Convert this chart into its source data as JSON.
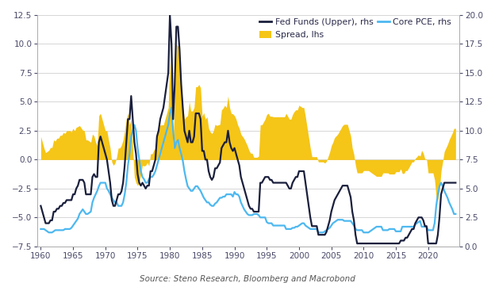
{
  "source_text": "Source: Steno Research, Bloomberg and Macrobond",
  "lhs_ylim": [
    -7.5,
    12.5
  ],
  "rhs_ylim": [
    0.0,
    20.0
  ],
  "xlim": [
    1959.5,
    2024.8
  ],
  "xticks": [
    1960,
    1965,
    1970,
    1975,
    1980,
    1985,
    1990,
    1995,
    2000,
    2005,
    2010,
    2015,
    2020
  ],
  "lhs_yticks": [
    -7.5,
    -5.0,
    -2.5,
    0.0,
    2.5,
    5.0,
    7.5,
    10.0,
    12.5
  ],
  "rhs_yticks": [
    0.0,
    2.5,
    5.0,
    7.5,
    10.0,
    12.5,
    15.0,
    17.5,
    20.0
  ],
  "bg_color": "#ffffff",
  "grid_color": "#d0d0d0",
  "fed_funds_color": "#1a1f3c",
  "core_pce_color": "#4db8f0",
  "spread_color": "#f5c518",
  "spread_alpha": 1.0,
  "legend_fed_funds": "Fed Funds (Upper), rhs",
  "legend_core_pce": "Core PCE, rhs",
  "legend_spread": "Spread, lhs",
  "t": [
    1960.0,
    1960.25,
    1960.5,
    1960.75,
    1961.0,
    1961.25,
    1961.5,
    1961.75,
    1962.0,
    1962.25,
    1962.5,
    1962.75,
    1963.0,
    1963.25,
    1963.5,
    1963.75,
    1964.0,
    1964.25,
    1964.5,
    1964.75,
    1965.0,
    1965.25,
    1965.5,
    1965.75,
    1966.0,
    1966.25,
    1966.5,
    1966.75,
    1967.0,
    1967.25,
    1967.5,
    1967.75,
    1968.0,
    1968.25,
    1968.5,
    1968.75,
    1969.0,
    1969.25,
    1969.5,
    1969.75,
    1970.0,
    1970.25,
    1970.5,
    1970.75,
    1971.0,
    1971.25,
    1971.5,
    1971.75,
    1972.0,
    1972.25,
    1972.5,
    1972.75,
    1973.0,
    1973.25,
    1973.5,
    1973.75,
    1974.0,
    1974.25,
    1974.5,
    1974.75,
    1975.0,
    1975.25,
    1975.5,
    1975.75,
    1976.0,
    1976.25,
    1976.5,
    1976.75,
    1977.0,
    1977.25,
    1977.5,
    1977.75,
    1978.0,
    1978.25,
    1978.5,
    1978.75,
    1979.0,
    1979.25,
    1979.5,
    1979.75,
    1980.0,
    1980.25,
    1980.5,
    1980.75,
    1981.0,
    1981.25,
    1981.5,
    1981.75,
    1982.0,
    1982.25,
    1982.5,
    1982.75,
    1983.0,
    1983.25,
    1983.5,
    1983.75,
    1984.0,
    1984.25,
    1984.5,
    1984.75,
    1985.0,
    1985.25,
    1985.5,
    1985.75,
    1986.0,
    1986.25,
    1986.5,
    1986.75,
    1987.0,
    1987.25,
    1987.5,
    1987.75,
    1988.0,
    1988.25,
    1988.5,
    1988.75,
    1989.0,
    1989.25,
    1989.5,
    1989.75,
    1990.0,
    1990.25,
    1990.5,
    1990.75,
    1991.0,
    1991.25,
    1991.5,
    1991.75,
    1992.0,
    1992.25,
    1992.5,
    1992.75,
    1993.0,
    1993.25,
    1993.5,
    1993.75,
    1994.0,
    1994.25,
    1994.5,
    1994.75,
    1995.0,
    1995.25,
    1995.5,
    1995.75,
    1996.0,
    1996.25,
    1996.5,
    1996.75,
    1997.0,
    1997.25,
    1997.5,
    1997.75,
    1998.0,
    1998.25,
    1998.5,
    1998.75,
    1999.0,
    1999.25,
    1999.5,
    1999.75,
    2000.0,
    2000.25,
    2000.5,
    2000.75,
    2001.0,
    2001.25,
    2001.5,
    2001.75,
    2002.0,
    2002.25,
    2002.5,
    2002.75,
    2003.0,
    2003.25,
    2003.5,
    2003.75,
    2004.0,
    2004.25,
    2004.5,
    2004.75,
    2005.0,
    2005.25,
    2005.5,
    2005.75,
    2006.0,
    2006.25,
    2006.5,
    2006.75,
    2007.0,
    2007.25,
    2007.5,
    2007.75,
    2008.0,
    2008.25,
    2008.5,
    2008.75,
    2009.0,
    2009.25,
    2009.5,
    2009.75,
    2010.0,
    2010.25,
    2010.5,
    2010.75,
    2011.0,
    2011.25,
    2011.5,
    2011.75,
    2012.0,
    2012.25,
    2012.5,
    2012.75,
    2013.0,
    2013.25,
    2013.5,
    2013.75,
    2014.0,
    2014.25,
    2014.5,
    2014.75,
    2015.0,
    2015.25,
    2015.5,
    2015.75,
    2016.0,
    2016.25,
    2016.5,
    2016.75,
    2017.0,
    2017.25,
    2017.5,
    2017.75,
    2018.0,
    2018.25,
    2018.5,
    2018.75,
    2019.0,
    2019.25,
    2019.5,
    2019.75,
    2020.0,
    2020.25,
    2020.5,
    2020.75,
    2021.0,
    2021.25,
    2021.5,
    2021.75,
    2022.0,
    2022.25,
    2022.5,
    2022.75,
    2023.0,
    2023.25,
    2023.5,
    2023.75,
    2024.0,
    2024.25
  ],
  "fed_funds_rhs": [
    3.5,
    3.0,
    2.5,
    2.0,
    2.0,
    2.0,
    2.25,
    2.25,
    3.0,
    3.0,
    3.25,
    3.25,
    3.5,
    3.5,
    3.75,
    3.75,
    4.0,
    4.0,
    4.0,
    4.0,
    4.5,
    4.5,
    5.0,
    5.25,
    5.75,
    5.75,
    5.75,
    5.5,
    4.5,
    4.5,
    4.5,
    4.5,
    6.0,
    6.25,
    6.0,
    6.0,
    9.0,
    9.5,
    9.0,
    8.5,
    8.0,
    7.5,
    6.5,
    5.5,
    4.0,
    3.5,
    3.5,
    4.0,
    4.5,
    4.5,
    4.75,
    5.5,
    7.0,
    9.0,
    11.0,
    11.0,
    13.0,
    11.0,
    9.0,
    8.0,
    6.25,
    5.5,
    5.25,
    5.5,
    5.25,
    5.0,
    5.25,
    5.25,
    6.5,
    6.5,
    7.0,
    7.5,
    9.5,
    10.0,
    11.0,
    11.5,
    12.0,
    13.0,
    14.0,
    15.0,
    20.0,
    17.5,
    11.0,
    14.0,
    19.0,
    19.0,
    17.0,
    14.0,
    12.0,
    10.0,
    9.5,
    9.0,
    10.0,
    9.0,
    9.0,
    9.5,
    11.5,
    11.5,
    11.5,
    11.0,
    8.25,
    8.25,
    7.5,
    7.5,
    6.5,
    6.0,
    5.75,
    6.0,
    6.75,
    6.75,
    7.0,
    7.25,
    8.5,
    8.75,
    9.0,
    9.0,
    10.0,
    9.0,
    8.5,
    8.25,
    8.5,
    8.0,
    7.5,
    7.0,
    6.0,
    5.5,
    5.0,
    4.5,
    4.0,
    3.5,
    3.25,
    3.25,
    3.0,
    3.0,
    3.0,
    3.0,
    5.5,
    5.5,
    5.75,
    6.0,
    6.0,
    6.0,
    5.75,
    5.75,
    5.5,
    5.5,
    5.5,
    5.5,
    5.5,
    5.5,
    5.5,
    5.5,
    5.5,
    5.25,
    5.0,
    5.0,
    5.5,
    5.75,
    6.0,
    6.0,
    6.5,
    6.5,
    6.5,
    6.5,
    5.5,
    4.5,
    3.5,
    2.5,
    1.75,
    1.75,
    1.75,
    1.75,
    1.0,
    1.0,
    1.0,
    1.0,
    1.0,
    1.25,
    1.75,
    2.25,
    3.0,
    3.5,
    4.0,
    4.25,
    4.5,
    4.75,
    5.0,
    5.25,
    5.25,
    5.25,
    5.25,
    4.75,
    4.25,
    3.0,
    2.25,
    1.0,
    0.25,
    0.25,
    0.25,
    0.25,
    0.25,
    0.25,
    0.25,
    0.25,
    0.25,
    0.25,
    0.25,
    0.25,
    0.25,
    0.25,
    0.25,
    0.25,
    0.25,
    0.25,
    0.25,
    0.25,
    0.25,
    0.25,
    0.25,
    0.25,
    0.25,
    0.25,
    0.25,
    0.5,
    0.5,
    0.5,
    0.75,
    0.75,
    1.0,
    1.25,
    1.5,
    1.5,
    2.0,
    2.25,
    2.5,
    2.5,
    2.5,
    2.25,
    1.75,
    1.75,
    0.25,
    0.25,
    0.25,
    0.25,
    0.25,
    0.25,
    1.0,
    2.5,
    4.5,
    5.0,
    5.5,
    5.5,
    5.5,
    5.5,
    5.5,
    5.5,
    5.5,
    5.5
  ],
  "core_pce_rhs": [
    1.5,
    1.5,
    1.5,
    1.4,
    1.3,
    1.2,
    1.2,
    1.2,
    1.3,
    1.4,
    1.4,
    1.4,
    1.4,
    1.4,
    1.4,
    1.5,
    1.5,
    1.5,
    1.5,
    1.6,
    1.8,
    2.0,
    2.2,
    2.4,
    2.8,
    3.0,
    3.2,
    3.0,
    2.8,
    2.8,
    2.9,
    3.0,
    3.8,
    4.2,
    4.5,
    4.8,
    5.2,
    5.5,
    5.5,
    5.5,
    5.5,
    5.0,
    4.8,
    4.5,
    4.2,
    4.0,
    3.8,
    3.8,
    3.5,
    3.5,
    3.5,
    3.8,
    4.5,
    5.5,
    7.0,
    8.0,
    9.5,
    10.0,
    10.5,
    10.0,
    8.5,
    7.5,
    6.5,
    6.0,
    5.8,
    5.5,
    5.5,
    5.8,
    6.0,
    6.0,
    6.2,
    6.5,
    7.0,
    7.5,
    8.0,
    8.5,
    9.0,
    9.5,
    10.0,
    10.5,
    11.5,
    12.0,
    10.0,
    8.5,
    9.0,
    9.2,
    8.5,
    8.0,
    7.4,
    6.5,
    5.8,
    5.2,
    5.0,
    4.8,
    4.8,
    5.0,
    5.2,
    5.2,
    5.0,
    4.8,
    4.5,
    4.2,
    4.0,
    3.8,
    3.8,
    3.6,
    3.5,
    3.5,
    3.7,
    3.8,
    4.0,
    4.2,
    4.2,
    4.3,
    4.3,
    4.5,
    4.5,
    4.5,
    4.5,
    4.3,
    4.7,
    4.5,
    4.5,
    4.3,
    3.8,
    3.5,
    3.2,
    3.0,
    2.8,
    2.7,
    2.7,
    2.7,
    2.8,
    2.8,
    2.8,
    2.7,
    2.5,
    2.5,
    2.5,
    2.5,
    2.1,
    2.0,
    2.0,
    2.0,
    1.8,
    1.8,
    1.8,
    1.8,
    1.8,
    1.8,
    1.8,
    1.8,
    1.5,
    1.5,
    1.5,
    1.5,
    1.6,
    1.6,
    1.7,
    1.7,
    1.8,
    1.9,
    2.0,
    2.0,
    1.8,
    1.7,
    1.6,
    1.5,
    1.5,
    1.5,
    1.5,
    1.5,
    1.2,
    1.2,
    1.2,
    1.2,
    1.3,
    1.4,
    1.5,
    1.6,
    1.8,
    2.0,
    2.1,
    2.2,
    2.3,
    2.3,
    2.3,
    2.3,
    2.2,
    2.2,
    2.2,
    2.2,
    2.2,
    2.0,
    1.8,
    1.5,
    1.4,
    1.4,
    1.4,
    1.4,
    1.2,
    1.2,
    1.2,
    1.2,
    1.3,
    1.4,
    1.5,
    1.6,
    1.7,
    1.7,
    1.7,
    1.7,
    1.4,
    1.4,
    1.4,
    1.4,
    1.5,
    1.5,
    1.5,
    1.5,
    1.3,
    1.3,
    1.3,
    1.3,
    1.7,
    1.7,
    1.7,
    1.7,
    1.7,
    1.7,
    1.7,
    1.7,
    1.9,
    2.0,
    2.1,
    2.2,
    1.7,
    1.7,
    1.7,
    1.7,
    1.4,
    1.4,
    1.4,
    1.4,
    2.0,
    3.5,
    4.5,
    5.2,
    5.5,
    5.2,
    4.8,
    4.5,
    4.2,
    3.8,
    3.5,
    3.2,
    2.8,
    2.8
  ]
}
